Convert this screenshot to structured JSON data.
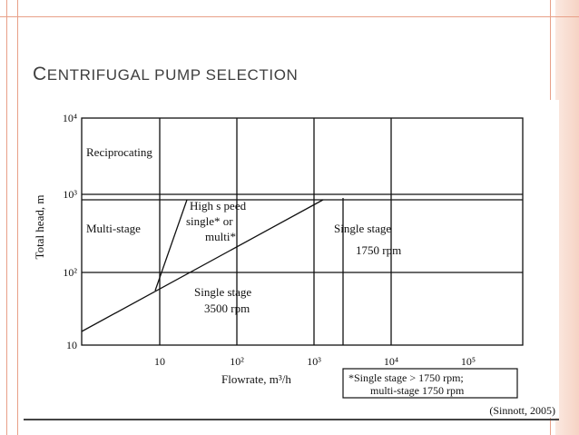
{
  "slide": {
    "title_first": "C",
    "title_rest": "ENTRIFUGAL PUMP SELECTION",
    "citation": "(Sinnott, 2005)"
  },
  "figure": {
    "y_axis_label": "Total head, m",
    "x_axis_label": "Flowrate, m³/h",
    "x_ticks": [
      "10",
      "10²",
      "10³",
      "10⁴",
      "10⁵"
    ],
    "y_ticks": [
      "10",
      "10²",
      "10³",
      "10⁴"
    ],
    "regions": {
      "reciprocating": "Reciprocating",
      "multi_stage": "Multi-stage",
      "high_speed_line1": "High s peed",
      "high_speed_line2": "single* or",
      "high_speed_line3": "multi*",
      "single_1750_line1": "Single stage",
      "single_1750_line2": "1750 rpm",
      "single_3500_line1": "Single stage",
      "single_3500_line2": "3500 rpm"
    },
    "footnote_line1": "*Single stage > 1750 rpm;",
    "footnote_line2": "multi-stage 1750 rpm"
  }
}
